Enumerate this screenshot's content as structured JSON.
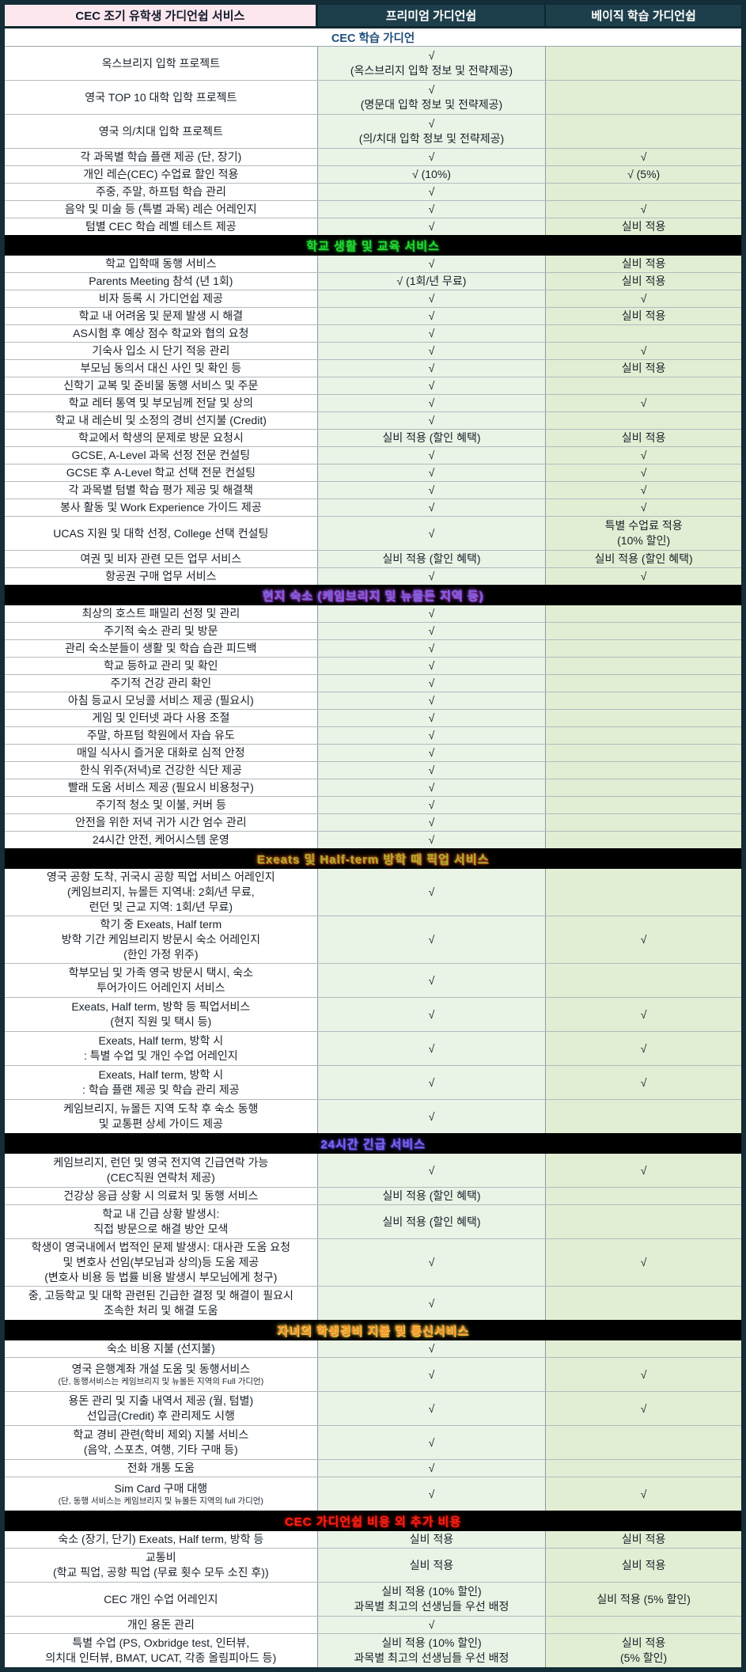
{
  "colors": {
    "frame": "#132e38",
    "header_dark_bg": "#1d3f4b",
    "header_pink_bg": "#fce7ef",
    "subheader_text": "#1f4e79",
    "premium_col_bg": "#e9f4e6",
    "basic_col_bg": "#e2eed3",
    "band_bg": "#000000"
  },
  "table": {
    "header": {
      "service": "CEC 조기 유학생 가디언쉽 서비스",
      "premium": "프리미엄 가디언쉽",
      "basic": "베이직 학습 가디언쉽"
    },
    "sections": [
      {
        "kind": "subheader",
        "title": "CEC 학습 가디언",
        "rows": [
          {
            "service": "옥스브리지 입학 프로젝트",
            "premium": "√\n(옥스브리지 입학 정보 및 전략제공)",
            "basic": ""
          },
          {
            "service": "영국 TOP 10 대학 입학 프로젝트",
            "premium": "√\n(명문대 입학 정보 및 전략제공)",
            "basic": ""
          },
          {
            "service": "영국 의/치대 입학 프로젝트",
            "premium": "√\n(의/치대 입학 정보 및 전략제공)",
            "basic": ""
          },
          {
            "service": "각 과목별 학습 플랜 제공 (단, 장기)",
            "premium": "√",
            "basic": "√"
          },
          {
            "service": "개인 레슨(CEC) 수업료 할인 적용",
            "premium": "√ (10%)",
            "basic": "√ (5%)"
          },
          {
            "service": "주중, 주말, 하프텀 학습 관리",
            "premium": "√",
            "basic": ""
          },
          {
            "service": "음악 및 미술 등 (특별 과목) 레슨 어레인지",
            "premium": "√",
            "basic": "√"
          },
          {
            "service": "텀별 CEC 학습 레벨 테스트 제공",
            "premium": "√",
            "basic": "실비 적용"
          }
        ]
      },
      {
        "kind": "band",
        "title": "학교 생활 및 교육 서비스",
        "color": "#27d833",
        "glow": "#0c7a1c",
        "rows": [
          {
            "service": "학교 입학때 동행 서비스",
            "premium": "√",
            "basic": "실비 적용"
          },
          {
            "service": "Parents Meeting 참석 (년 1회)",
            "premium": "√ (1회/년 무료)",
            "basic": "실비 적용"
          },
          {
            "service": "비자 등록 시 가디언쉽 제공",
            "premium": "√",
            "basic": "√"
          },
          {
            "service": "학교 내 어려움 및 문제 발생 시 해결",
            "premium": "√",
            "basic": "실비 적용"
          },
          {
            "service": "AS시험 후 예상 점수 학교와 협의 요청",
            "premium": "√",
            "basic": ""
          },
          {
            "service": "기숙사 입소 시 단기 적응 관리",
            "premium": "√",
            "basic": "√"
          },
          {
            "service": "부모님 동의서 대신 사인 및 확인 등",
            "premium": "√",
            "basic": "실비 적용"
          },
          {
            "service": "신학기 교복 및 준비물 동행 서비스 및 주문",
            "premium": "√",
            "basic": ""
          },
          {
            "service": "학교 레터 통역 및 부모님께 전달 및 상의",
            "premium": "√",
            "basic": "√"
          },
          {
            "service": "학교 내 레슨비 및 소정의 경비 선지불 (Credit)",
            "premium": "√",
            "basic": ""
          },
          {
            "service": "학교에서 학생의 문제로 방문 요청시",
            "premium": "실비 적용 (할인 혜택)",
            "basic": "실비 적용"
          },
          {
            "service": "GCSE, A-Level 과목 선정 전문 컨설팅",
            "premium": "√",
            "basic": "√"
          },
          {
            "service": "GCSE 후 A-Level 학교 선택 전문 컨설팅",
            "premium": "√",
            "basic": "√"
          },
          {
            "service": "각 과목별 텀별 학습 평가 제공 및 해결책",
            "premium": "√",
            "basic": "√"
          },
          {
            "service": "봉사 활동 및 Work Experience 가이드 제공",
            "premium": "√",
            "basic": "√"
          },
          {
            "service": "UCAS 지원 및 대학 선정, College 선택 컨설팅",
            "premium": "√",
            "basic": "특별 수업료 적용\n(10% 할인)"
          },
          {
            "service": "여권 및 비자 관련 모든 업무 서비스",
            "premium": "실비 적용 (할인 혜택)",
            "basic": "실비 적용 (할인 혜택)"
          },
          {
            "service": "항공권 구매 업무 서비스",
            "premium": "√",
            "basic": "√"
          }
        ]
      },
      {
        "kind": "band",
        "title": "현지 숙소 (케임브리지 및 뉴몰든 지역 등)",
        "color": "#7668d8",
        "glow": "#a03ad0",
        "rows": [
          {
            "service": "최상의 호스트 패밀리 선정 및 관리",
            "premium": "√",
            "basic": ""
          },
          {
            "service": "주기적 숙소 관리 및 방문",
            "premium": "√",
            "basic": ""
          },
          {
            "service": "관리 숙소분들이 생활 및 학습 습관 피드백",
            "premium": "√",
            "basic": ""
          },
          {
            "service": "학교 등하교 관리 및 확인",
            "premium": "√",
            "basic": ""
          },
          {
            "service": "주기적 건강 관리 확인",
            "premium": "√",
            "basic": ""
          },
          {
            "service": "아침 등교시 모닝콜 서비스 제공 (필요시)",
            "premium": "√",
            "basic": ""
          },
          {
            "service": "게임 및 인터넷 과다 사용 조절",
            "premium": "√",
            "basic": ""
          },
          {
            "service": "주말, 하프텀 학원에서 자습 유도",
            "premium": "√",
            "basic": ""
          },
          {
            "service": "매일 식사시 즐거운 대화로 심적 안정",
            "premium": "√",
            "basic": ""
          },
          {
            "service": "한식 위주(저녁)로 건강한 식단 제공",
            "premium": "√",
            "basic": ""
          },
          {
            "service": "빨래 도움 서비스 제공 (필요시 비용청구)",
            "premium": "√",
            "basic": ""
          },
          {
            "service": "주기적 청소 및 이불, 커버 등",
            "premium": "√",
            "basic": ""
          },
          {
            "service": "안전을 위한 저녁 귀가 시간 엄수 관리",
            "premium": "√",
            "basic": ""
          },
          {
            "service": "24시간 안전, 케어시스템 운영",
            "premium": "√",
            "basic": ""
          }
        ]
      },
      {
        "kind": "band",
        "title": "Exeats 및 Half-term 방학 때 픽업 서비스",
        "color": "#a6b12b",
        "glow": "#c8581f",
        "rows": [
          {
            "service": "영국 공항 도착, 귀국시 공항 픽업 서비스 어레인지\n(케임브리지, 뉴몰든 지역내: 2회/년 무료,\n런던 및 근교 지역: 1회/년 무료)",
            "premium": "√",
            "basic": ""
          },
          {
            "service": "학기 중 Exeats, Half term\n방학 기간 케임브리지 방문시 숙소 어레인지\n(한인 가정 위주)",
            "premium": "√",
            "basic": "√"
          },
          {
            "service": "학부모님 및 가족 영국 방문시 택시, 숙소\n투어가이드 어레인지 서비스",
            "premium": "√",
            "basic": ""
          },
          {
            "service": "Exeats, Half term, 방학 등 픽업서비스\n(현지 직원 및 택시 등)",
            "premium": "√",
            "basic": "√"
          },
          {
            "service": "Exeats, Half term, 방학 시\n: 특별 수업 및 개인 수업 어레인지",
            "premium": "√",
            "basic": "√"
          },
          {
            "service": "Exeats, Half term, 방학 시\n: 학습 플랜 제공 및 학습 관리 제공",
            "premium": "√",
            "basic": "√"
          },
          {
            "service": "케임브리지, 뉴몰든 지역 도착 후 숙소 동행\n및 교통편 상세 가이드 제공",
            "premium": "√",
            "basic": ""
          }
        ]
      },
      {
        "kind": "band",
        "title": "24시간 긴급 서비스",
        "color": "#7b68ee",
        "glow": "#4638b8",
        "rows": [
          {
            "service": "케임브리지, 런던 및 영국 전지역 긴급연락 가능\n(CEC직원 연락처 제공)",
            "premium": "√",
            "basic": "√"
          },
          {
            "service": "건강상 응급 상황 시 의료처 및 동행 서비스",
            "premium": "실비 적용 (할인 혜택)",
            "basic": ""
          },
          {
            "service": "학교 내 긴급 상황 발생시:\n직접 방문으로 해결 방안 모색",
            "premium": "실비 적용 (할인 혜택)",
            "basic": ""
          },
          {
            "service": "학생이 영국내에서 법적인 문제 발생시: 대사관 도움 요청\n및 변호사 선임(부모님과 상의)등 도움 제공\n(변호사 비용 등 법률 비용 발생시 부모님에게 청구)",
            "premium": "√",
            "basic": "√"
          },
          {
            "service": "중, 고등학교 및 대학 관련된 긴급한 결정 및 해결이 필요시\n조속한 처리 및 해결 도움",
            "premium": "√",
            "basic": ""
          }
        ]
      },
      {
        "kind": "band",
        "title": "자녀의 학생경비 지불 및 통신서비스",
        "color": "#f29030",
        "glow": "#ffd34d",
        "rows": [
          {
            "service": "숙소 비용 지불 (선지불)",
            "premium": "√",
            "basic": ""
          },
          {
            "service": "영국 은행계좌 개설 도움 및 동행서비스",
            "note": "(단, 동행서비스는 케임브리지 및 뉴몰든 지역의 Full 가디언)",
            "premium": "√",
            "basic": "√"
          },
          {
            "service": "용돈 관리 및 지출 내역서 제공 (월, 텀별)\n선입금(Credit) 후 관리제도 시행",
            "premium": "√",
            "basic": "√"
          },
          {
            "service": "학교 경비 관련(학비 제외) 지불 서비스\n(음악, 스포츠, 여행, 기타 구매 등)",
            "premium": "√",
            "basic": ""
          },
          {
            "service": "전화 개통 도움",
            "premium": "√",
            "basic": ""
          },
          {
            "service": "Sim Card 구매 대행",
            "note": "(단, 동행 서비스는 케임브리지 및 뉴몰든 지역의 full 가디언)",
            "premium": "√",
            "basic": "√"
          }
        ]
      },
      {
        "kind": "band",
        "title": "CEC 가디언쉽 비용 외 추가 비용",
        "color": "#ff2015",
        "glow": "#8a0b06",
        "rows": [
          {
            "service": "숙소 (장기, 단기) Exeats, Half term, 방학 등",
            "premium": "실비 적용",
            "basic": "실비 적용"
          },
          {
            "service": "교통비\n(학교 픽업, 공항 픽업 (무료 횟수 모두 소진 후))",
            "premium": "실비 적용",
            "basic": "실비 적용"
          },
          {
            "service": "CEC 개인 수업 어레인지",
            "premium": "실비 적용 (10% 할인)\n과목별 최고의 선생님들 우선 배정",
            "basic": "실비 적용 (5% 할인)"
          },
          {
            "service": "개인 용돈 관리",
            "premium": "√",
            "basic": ""
          },
          {
            "service": "특별 수업 (PS, Oxbridge test, 인터뷰,\n의치대 인터뷰, BMAT, UCAT, 각종 올림피아드 등)",
            "premium": "실비 적용 (10% 할인)\n과목별 최고의 선생님들 우선 배정",
            "basic": "실비 적용\n(5% 할인)"
          }
        ]
      }
    ]
  }
}
